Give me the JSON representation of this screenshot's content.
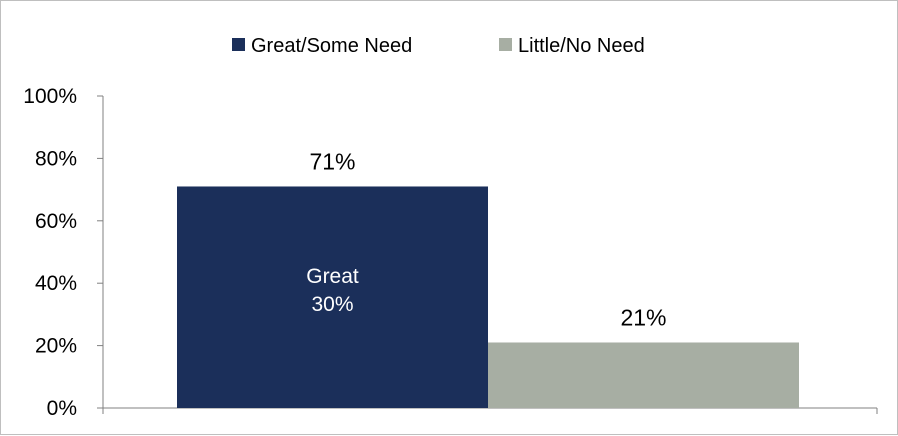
{
  "chart_data": {
    "type": "bar",
    "title": "",
    "xlabel": "",
    "ylabel": "",
    "ylim": [
      0,
      100
    ],
    "yticks": [
      "0%",
      "20%",
      "40%",
      "60%",
      "80%",
      "100%"
    ],
    "grid": false,
    "legend_position": "top",
    "series": [
      {
        "name": "Great/Some Need",
        "value": 71,
        "label": "71%",
        "color": "#1b2f5a"
      },
      {
        "name": "Little/No Need",
        "value": 21,
        "label": "21%",
        "color": "#a7aea3"
      }
    ],
    "annotations": [
      {
        "series": "Great/Some Need",
        "text": [
          "Great",
          "30%"
        ]
      }
    ]
  }
}
